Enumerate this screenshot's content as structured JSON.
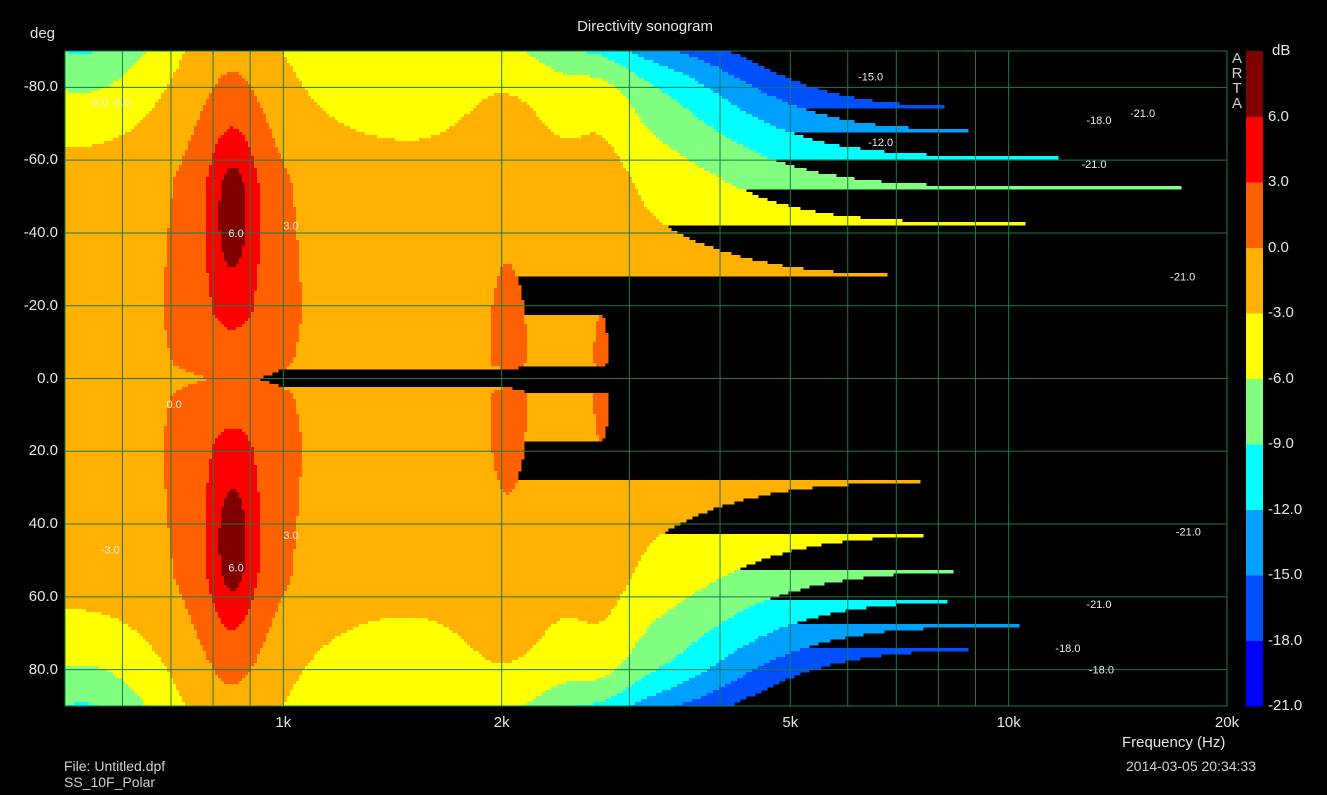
{
  "chart_data": {
    "type": "heatmap",
    "title": "Directivity sonogram",
    "ylabel": "deg",
    "xlabel": "Frequency (Hz)",
    "colorbar_label": "dB",
    "x_scale": "log",
    "xlim": [
      500,
      20000
    ],
    "ylim": [
      -90,
      90
    ],
    "y_inverted": true,
    "grid": true,
    "x_ticks": [
      {
        "value": 1000,
        "label": "1k"
      },
      {
        "value": 2000,
        "label": "2k"
      },
      {
        "value": 5000,
        "label": "5k"
      },
      {
        "value": 10000,
        "label": "10k"
      },
      {
        "value": 20000,
        "label": "20k"
      }
    ],
    "x_gridlines": [
      600,
      700,
      800,
      900,
      1000,
      2000,
      3000,
      4000,
      5000,
      6000,
      7000,
      8000,
      9000,
      10000,
      20000
    ],
    "y_ticks": [
      -80,
      -60,
      -40,
      -20,
      0,
      20,
      40,
      60,
      80
    ],
    "y_tick_labels": [
      "-80.0",
      "-60.0",
      "-40.0",
      "-20.0",
      "0.0",
      "20.0",
      "40.0",
      "60.0",
      "80.0"
    ],
    "colorbar": {
      "levels": [
        -21,
        -18,
        -15,
        -12,
        -9,
        -6,
        -3,
        0,
        3,
        6,
        9
      ],
      "tick_labels": [
        "-21.0",
        "-18.0",
        "-15.0",
        "-12.0",
        "-9.0",
        "-6.0",
        "-3.0",
        "0.0",
        "3.0",
        "6.0"
      ],
      "colors": [
        "#0000ff",
        "#0050ff",
        "#00a0ff",
        "#00ffff",
        "#80ff80",
        "#ffff00",
        "#ffb000",
        "#ff6000",
        "#ff0000",
        "#800000"
      ]
    },
    "contour_labels": [
      {
        "text": "-15.0",
        "f": 6200,
        "deg": -83
      },
      {
        "text": "-12.0",
        "f": 6400,
        "deg": -65
      },
      {
        "text": "-18.0",
        "f": 12800,
        "deg": -71
      },
      {
        "text": "-21.0",
        "f": 14700,
        "deg": -73
      },
      {
        "text": "-21.0",
        "f": 12600,
        "deg": -59
      },
      {
        "text": "-21.0",
        "f": 16700,
        "deg": -28
      },
      {
        "text": "6.0",
        "f": 840,
        "deg": -40
      },
      {
        "text": "3.0",
        "f": 1000,
        "deg": -42
      },
      {
        "text": "-6.0",
        "f": 540,
        "deg": -76
      },
      {
        "text": "-6.0",
        "f": 580,
        "deg": -76
      },
      {
        "text": "0.0",
        "f": 690,
        "deg": 7
      },
      {
        "text": "6.0",
        "f": 840,
        "deg": 52
      },
      {
        "text": "3.0",
        "f": 1000,
        "deg": 43
      },
      {
        "text": "-3.0",
        "f": 560,
        "deg": 47
      },
      {
        "text": "-21.0",
        "f": 17000,
        "deg": 42
      },
      {
        "text": "-21.0",
        "f": 12800,
        "deg": 62
      },
      {
        "text": "-18.0",
        "f": 11600,
        "deg": 74
      },
      {
        "text": "-18.0",
        "f": 12900,
        "deg": 80
      }
    ],
    "brand": [
      "A",
      "R",
      "T",
      "A"
    ]
  },
  "footer": {
    "file": "File: Untitled.dpf",
    "name": "SS_10F_Polar",
    "date": "2014-03-05  20:34:33"
  }
}
